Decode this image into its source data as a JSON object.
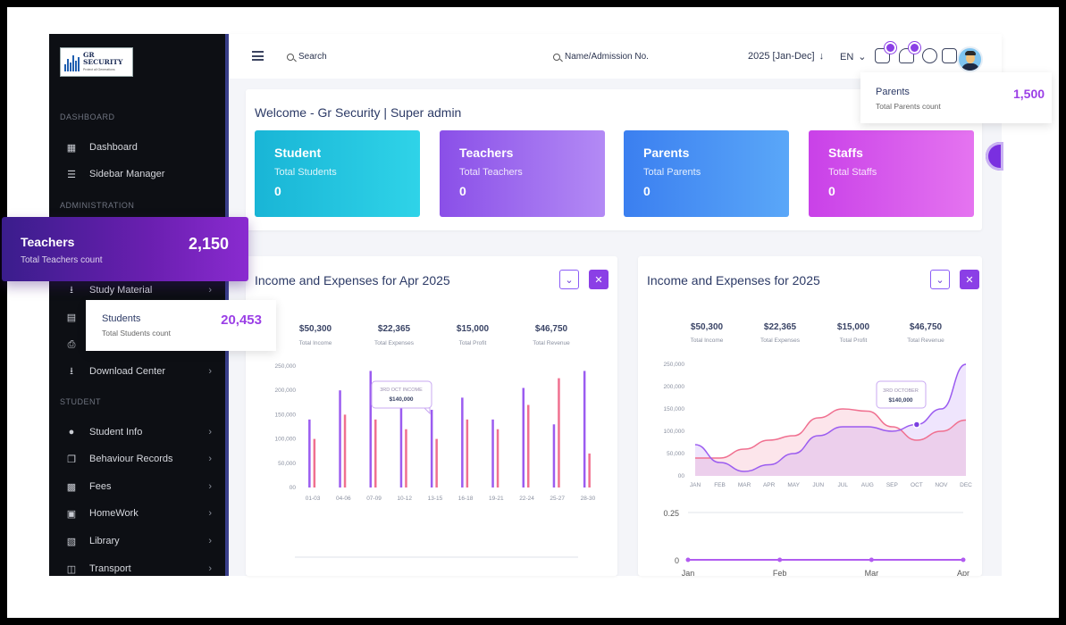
{
  "brand": {
    "logo_line1": "GR",
    "logo_line2": "SECURITY",
    "logo_tagline": "Protect all Generations"
  },
  "sidebar": {
    "sections": {
      "dashboard": "DASHBOARD",
      "administration": "ADMINISTRATION",
      "student": "STUDENT"
    },
    "items": [
      {
        "label": "Dashboard",
        "icon": "grid-icon"
      },
      {
        "label": "Sidebar Manager",
        "icon": "list-icon"
      },
      {
        "label": "Study Material",
        "icon": "download-icon"
      },
      {
        "label": "",
        "icon": "id-card-icon"
      },
      {
        "label": "",
        "icon": "printer-icon"
      },
      {
        "label": "Download Center",
        "icon": "download-icon"
      },
      {
        "label": "Student Info",
        "icon": "user-icon"
      },
      {
        "label": "Behaviour Records",
        "icon": "records-icon"
      },
      {
        "label": "Fees",
        "icon": "money-icon"
      },
      {
        "label": "HomeWork",
        "icon": "book-open-icon"
      },
      {
        "label": "Library",
        "icon": "library-icon"
      },
      {
        "label": "Transport",
        "icon": "bus-icon"
      }
    ]
  },
  "topbar": {
    "search_label": "Search",
    "admission_search_label": "Name/Admission No.",
    "session": "2025 [Jan-Dec]",
    "language": "EN"
  },
  "welcome": {
    "title": "Welcome - Gr Security | Super admin",
    "stats": [
      {
        "title": "Student",
        "subtitle": "Total Students",
        "value": "0"
      },
      {
        "title": "Teachers",
        "subtitle": "Total Teachers",
        "value": "0"
      },
      {
        "title": "Parents",
        "subtitle": "Total Parents",
        "value": "0"
      },
      {
        "title": "Staffs",
        "subtitle": "Total Staffs",
        "value": "0"
      }
    ]
  },
  "overlays": {
    "teachers": {
      "title": "Teachers",
      "subtitle": "Total Teachers count",
      "value": "2,150"
    },
    "students": {
      "title": "Students",
      "subtitle": "Total Students count",
      "value": "20,453"
    },
    "parents": {
      "title": "Parents",
      "subtitle": "Total Parents count",
      "value": "1,500"
    }
  },
  "colors": {
    "accent": "#8b3fe6",
    "income": "#9b5cf0",
    "expense": "#f07090"
  },
  "chart_data": [
    {
      "type": "bar",
      "title": "Income and Expenses for Apr 2025",
      "summary": [
        {
          "value": "$50,300",
          "label": "Total Income"
        },
        {
          "value": "$22,365",
          "label": "Total Expenses"
        },
        {
          "value": "$15,000",
          "label": "Total Profit"
        },
        {
          "value": "$46,750",
          "label": "Total Revenue"
        }
      ],
      "categories": [
        "01-03",
        "04-06",
        "07-09",
        "10-12",
        "13-15",
        "16-18",
        "19-21",
        "22-24",
        "25-27",
        "28-30"
      ],
      "series": [
        {
          "name": "Income",
          "values": [
            140000,
            200000,
            240000,
            175000,
            160000,
            185000,
            140000,
            205000,
            130000,
            240000
          ]
        },
        {
          "name": "Expenses",
          "values": [
            100000,
            150000,
            140000,
            120000,
            100000,
            140000,
            120000,
            170000,
            225000,
            70000
          ]
        }
      ],
      "yticks": [
        "00",
        "50,000",
        "100,000",
        "150,000",
        "200,000",
        "250,000"
      ],
      "ylim": [
        0,
        250000
      ],
      "tooltip": {
        "label": "3RD OCT INCOME",
        "value": "$140,000"
      }
    },
    {
      "type": "area",
      "title": "Income and Expenses for 2025",
      "summary": [
        {
          "value": "$50,300",
          "label": "Total Income"
        },
        {
          "value": "$22,365",
          "label": "Total Expenses"
        },
        {
          "value": "$15,000",
          "label": "Total Profit"
        },
        {
          "value": "$46,750",
          "label": "Total Revenue"
        }
      ],
      "categories": [
        "JAN",
        "FEB",
        "MAR",
        "APR",
        "MAY",
        "JUN",
        "JUL",
        "AUG",
        "SEP",
        "OCT",
        "NOV",
        "DEC"
      ],
      "series": [
        {
          "name": "Income",
          "values": [
            70000,
            30000,
            10000,
            25000,
            50000,
            90000,
            110000,
            110000,
            100000,
            115000,
            150000,
            250000
          ]
        },
        {
          "name": "Expenses",
          "values": [
            40000,
            40000,
            60000,
            80000,
            90000,
            130000,
            150000,
            145000,
            110000,
            80000,
            100000,
            125000
          ]
        }
      ],
      "yticks": [
        "00",
        "50,000",
        "100,000",
        "150,000",
        "200,000",
        "250,000"
      ],
      "ylim": [
        0,
        250000
      ],
      "tooltip": {
        "label": "3RD OCTOBER",
        "value": "$140,000"
      }
    },
    {
      "type": "line",
      "categories": [
        "Jan",
        "Feb",
        "Mar",
        "Apr"
      ],
      "values": [
        0,
        0,
        0,
        0
      ],
      "yticks": [
        "0",
        "0.25"
      ],
      "ylim": [
        0,
        0.25
      ]
    }
  ]
}
